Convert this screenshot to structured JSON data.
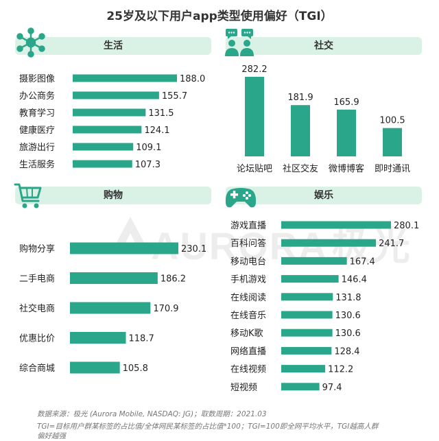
{
  "title": "25岁及以下用户app类型使用偏好（TGI）",
  "colors": {
    "bar": "#2aa68a",
    "header_bg": "#daf1e6",
    "icon": "#2aa68a",
    "text": "#222222"
  },
  "panels": {
    "life": {
      "label": "生活",
      "icon": "network-icon"
    },
    "social": {
      "label": "社交",
      "icon": "people-chat-icon"
    },
    "shopping": {
      "label": "购物",
      "icon": "shopping-cart-icon"
    },
    "entertainment": {
      "label": "娱乐",
      "icon": "gamepad-icon"
    }
  },
  "watermark": {
    "text": "AURORA",
    "cn": "极光",
    "logo": "aurora-logo"
  },
  "chart_data": [
    {
      "type": "bar",
      "orientation": "horizontal",
      "panel": "生活",
      "categories": [
        "摄影图像",
        "办公商务",
        "教育学习",
        "健康医疗",
        "旅游出行",
        "生活服务"
      ],
      "values": [
        188.0,
        155.7,
        131.5,
        124.1,
        109.1,
        107.3
      ],
      "labels": [
        "188.0",
        "155.7",
        "131.5",
        "124.1",
        "109.1",
        "107.3"
      ]
    },
    {
      "type": "bar",
      "orientation": "vertical",
      "panel": "社交",
      "categories": [
        "论坛贴吧",
        "社区交友",
        "微博博客",
        "即时通讯"
      ],
      "values": [
        282.2,
        181.9,
        165.9,
        100.5
      ],
      "labels": [
        "282.2",
        "181.9",
        "165.9",
        "100.5"
      ]
    },
    {
      "type": "bar",
      "orientation": "horizontal",
      "panel": "购物",
      "categories": [
        "购物分享",
        "二手电商",
        "社交电商",
        "优惠比价",
        "综合商城"
      ],
      "values": [
        230.1,
        186.2,
        170.9,
        118.7,
        105.8
      ],
      "labels": [
        "230.1",
        "186.2",
        "170.9",
        "118.7",
        "105.8"
      ]
    },
    {
      "type": "bar",
      "orientation": "horizontal",
      "panel": "娱乐",
      "categories": [
        "游戏直播",
        "百科问答",
        "移动电台",
        "手机游戏",
        "在线阅读",
        "在线音乐",
        "移动K歌",
        "网络直播",
        "在线视频",
        "短视频"
      ],
      "values": [
        280.1,
        241.7,
        167.4,
        146.4,
        131.8,
        130.6,
        130.6,
        128.4,
        112.2,
        97.4
      ],
      "labels": [
        "280.1",
        "241.7",
        "167.4",
        "146.4",
        "131.8",
        "130.6",
        "130.6",
        "128.4",
        "112.2",
        "97.4"
      ]
    }
  ],
  "footnotes": {
    "line1": "数据来源：极光 (Aurora Mobile, NASDAQ: JG)；取数周期：2021.03",
    "line2": "TGI=目标用户群某标签的占比值/全体网民某标签的占比值*100；TGI=100即全网平均水平，TGI越高人群",
    "line3": "偏好越强"
  }
}
